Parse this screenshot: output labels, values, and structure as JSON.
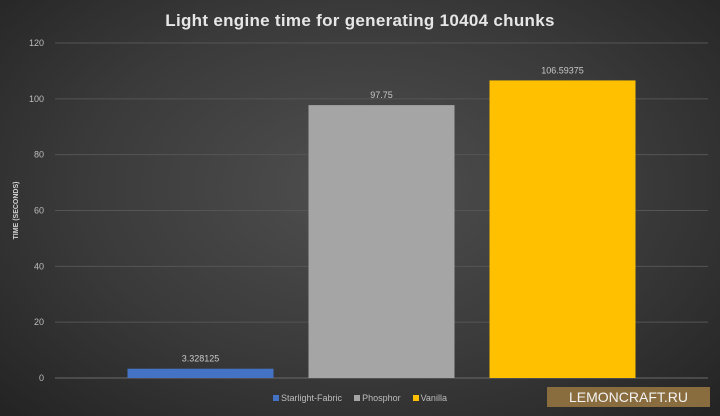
{
  "chart_data": {
    "type": "bar",
    "title": "Light engine time for generating 10404 chunks",
    "ylabel": "TIME (SECONDS)",
    "xlabel": "",
    "ylim": [
      0,
      120
    ],
    "yticks": [
      0,
      20,
      40,
      60,
      80,
      100,
      120
    ],
    "grid": true,
    "legend_position": "bottom",
    "series": [
      {
        "name": "Starlight-Fabric",
        "value": 3.328125,
        "label": "3.328125",
        "color": "#4472c4"
      },
      {
        "name": "Phosphor",
        "value": 97.75,
        "label": "97.75",
        "color": "#a5a5a5"
      },
      {
        "name": "Vanilla",
        "value": 106.59375,
        "label": "106.59375",
        "color": "#ffc000"
      }
    ]
  },
  "watermark": "LEMONCRAFT.RU"
}
